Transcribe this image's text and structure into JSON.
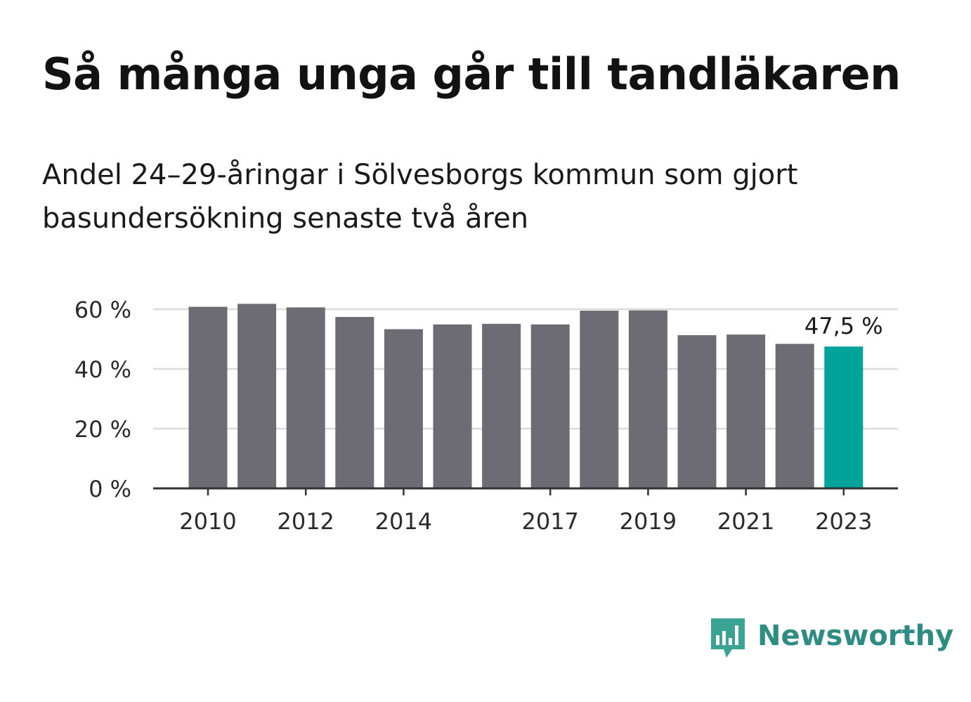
{
  "header": {
    "title": "Så många unga går till tandläkaren",
    "subtitle": "Andel 24–29-åringar i Sölvesborgs kommun som gjort basundersökning senaste två åren"
  },
  "brand": {
    "name": "Newsworthy",
    "color": "#2e8c82",
    "icon": "newsworthy-logo-icon"
  },
  "colors": {
    "bar": "#6d6c74",
    "highlight": "#00a39a",
    "grid": "#dcdcdc",
    "axis": "#333333"
  },
  "chart_data": {
    "type": "bar",
    "categories": [
      "2010",
      "2011",
      "2012",
      "2013",
      "2014",
      "2015",
      "2016",
      "2017",
      "2018",
      "2019",
      "2020",
      "2021",
      "2022",
      "2023"
    ],
    "values": [
      60.8,
      61.8,
      60.6,
      57.4,
      53.3,
      54.9,
      55.1,
      54.9,
      59.5,
      59.6,
      51.3,
      51.5,
      48.4,
      47.5
    ],
    "highlight_index": 13,
    "data_labels": [
      {
        "index": 13,
        "text": "47,5 %"
      }
    ],
    "xticks": [
      "2010",
      "2012",
      "2014",
      "2017",
      "2019",
      "2021",
      "2023"
    ],
    "yticks": [
      0,
      20,
      40,
      60
    ],
    "ytick_labels": [
      "0 %",
      "20 %",
      "40 %",
      "60 %"
    ],
    "ylim": [
      0,
      60
    ],
    "grid": true,
    "xlabel": "",
    "ylabel": ""
  }
}
